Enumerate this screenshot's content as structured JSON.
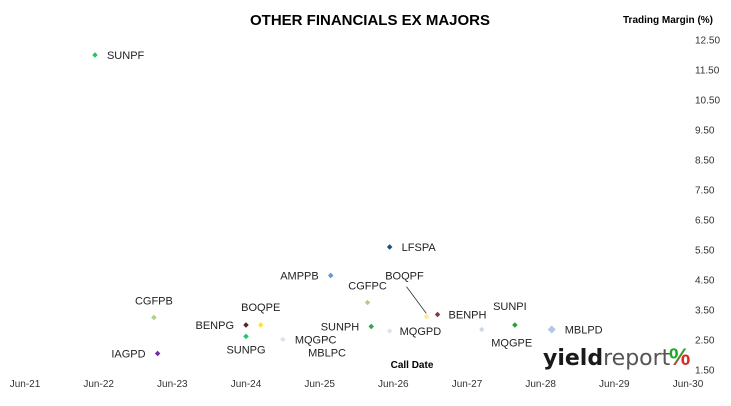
{
  "chart_data": {
    "type": "scatter",
    "title": "OTHER FINANCIALS EX MAJORS",
    "ylabel": "Trading Margin (%)",
    "xlabel": "Call Date",
    "x_ticks": [
      "Jun-21",
      "Jun-22",
      "Jun-23",
      "Jun-24",
      "Jun-25",
      "Jun-26",
      "Jun-27",
      "Jun-28",
      "Jun-29",
      "Jun-30"
    ],
    "y_ticks": [
      "12.50",
      "11.50",
      "10.50",
      "9.50",
      "8.50",
      "7.50",
      "6.50",
      "5.50",
      "4.50",
      "3.50",
      "2.50",
      "1.50"
    ],
    "ylim": [
      1.5,
      12.5
    ],
    "x_axis_type": "year-fraction",
    "x_range": [
      2021.5,
      2030.5
    ],
    "y_axis_side": "right",
    "grid": false,
    "legend": "none",
    "points": [
      {
        "label": "SUNPF",
        "x": 2022.45,
        "y": 12.0,
        "color": "#22c55e"
      },
      {
        "label": "LFSPA",
        "x": 2026.45,
        "y": 5.6,
        "color": "#1f4e79"
      },
      {
        "label": "AMPPB",
        "x": 2025.65,
        "y": 4.65,
        "color": "#5b9bd5"
      },
      {
        "label": "CGFPC",
        "x": 2026.15,
        "y": 3.75,
        "color": "#a9d18e"
      },
      {
        "label": "BOQPF",
        "x": 2026.95,
        "y": 3.28,
        "color": "#ffe699"
      },
      {
        "label": "BENPH",
        "x": 2027.1,
        "y": 3.35,
        "color": "#843c3c"
      },
      {
        "label": "SUNPI",
        "x": 2028.15,
        "y": 3.0,
        "color": "#22a52e"
      },
      {
        "label": "MBLPD",
        "x": 2028.65,
        "y": 2.85,
        "color": "#b4c7e7"
      },
      {
        "label": "MQGPE",
        "x": 2027.7,
        "y": 2.85,
        "color": "#cdd9ea"
      },
      {
        "label": "MQGPD",
        "x": 2026.45,
        "y": 2.8,
        "color": "#dae3f3"
      },
      {
        "label": "SUNPH",
        "x": 2026.2,
        "y": 2.95,
        "color": "#2ea84a"
      },
      {
        "label": "CGFPB",
        "x": 2023.25,
        "y": 3.25,
        "color": "#a9d18e"
      },
      {
        "label": "BOQPE",
        "x": 2024.7,
        "y": 3.0,
        "color": "#ffe033"
      },
      {
        "label": "BENPG",
        "x": 2024.5,
        "y": 3.0,
        "color": "#5a2424"
      },
      {
        "label": "SUNPG",
        "x": 2024.5,
        "y": 2.62,
        "color": "#22c55e"
      },
      {
        "label": "MQGPC",
        "x": 2025.0,
        "y": 2.52,
        "color": "#dae3f3"
      },
      {
        "label": "MBLPC",
        "x": 2025.6,
        "y": 2.52,
        "color": "#dae3f3"
      },
      {
        "label": "IAGPD",
        "x": 2023.3,
        "y": 2.05,
        "color": "#7030a0"
      }
    ]
  },
  "brand": {
    "text_bold": "yield",
    "text_light": "report",
    "symbol": "%",
    "colors": {
      "dark": "#1a1a1a",
      "light": "#555555",
      "green": "#22a52e",
      "red": "#d42a2a"
    }
  }
}
